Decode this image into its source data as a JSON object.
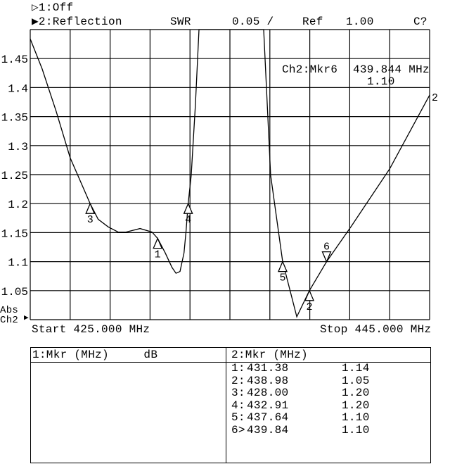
{
  "header": {
    "channel1": "▷1:Off",
    "channel2": "▶2:Reflection",
    "format": "SWR",
    "scale": "0.05 /",
    "ref_label": "Ref",
    "ref_value": "1.00",
    "status": "C?"
  },
  "marker_readout": {
    "label": "Ch2:Mkr6",
    "freq": "439.844 MHz",
    "value": "1.10"
  },
  "axis": {
    "abs": "Abs",
    "channel": "Ch2",
    "start": "Start 425.000 MHz",
    "stop": "Stop 445.000 MHz"
  },
  "table": {
    "left_header": "1:Mkr (MHz)     dB",
    "right_header": "2:Mkr (MHz)",
    "rows": [
      {
        "id": "1:",
        "freq": "431.38",
        "value": "1.14"
      },
      {
        "id": "2:",
        "freq": "438.98",
        "value": "1.05"
      },
      {
        "id": "3:",
        "freq": "428.00",
        "value": "1.20"
      },
      {
        "id": "4:",
        "freq": "432.91",
        "value": "1.20"
      },
      {
        "id": "5:",
        "freq": "437.64",
        "value": "1.10"
      },
      {
        "id": "6>",
        "freq": "439.84",
        "value": "1.10"
      }
    ]
  },
  "chart_data": {
    "type": "line",
    "xlabel": "",
    "ylabel": "",
    "xlim": [
      425,
      445
    ],
    "ylim": [
      1.0,
      1.5
    ],
    "grid": true,
    "yticks": [
      "1.45",
      "1.4",
      "1.35",
      "1.3",
      "1.25",
      "1.2",
      "1.15",
      "1.1",
      "1.05"
    ],
    "ytick_values": [
      1.45,
      1.4,
      1.35,
      1.3,
      1.25,
      1.2,
      1.15,
      1.1,
      1.05
    ],
    "trace_label": "2",
    "series": [
      {
        "x": [
          425.0,
          425.6,
          426.3,
          427.0,
          428.0,
          428.4,
          428.9,
          429.4,
          429.8,
          430.5,
          431.1,
          431.38,
          431.76,
          432.1,
          432.3,
          432.5,
          432.7,
          432.8,
          432.91,
          433.06,
          433.27,
          433.45,
          436.69,
          437.04,
          437.64,
          438.35,
          438.98,
          439.84,
          441.1,
          443.0,
          445.0
        ],
        "y": [
          1.484,
          1.432,
          1.359,
          1.279,
          1.2,
          1.173,
          1.16,
          1.151,
          1.151,
          1.157,
          1.151,
          1.14,
          1.115,
          1.09,
          1.08,
          1.083,
          1.115,
          1.151,
          1.2,
          1.248,
          1.37,
          1.5,
          1.5,
          1.249,
          1.1,
          1.005,
          1.05,
          1.1,
          1.162,
          1.26,
          1.387
        ]
      }
    ],
    "markers": [
      {
        "label": "1",
        "x": 431.38,
        "y": 1.14,
        "active": false
      },
      {
        "label": "2",
        "x": 438.98,
        "y": 1.05,
        "active": false
      },
      {
        "label": "3",
        "x": 428.0,
        "y": 1.2,
        "active": false
      },
      {
        "label": "4",
        "x": 432.91,
        "y": 1.2,
        "active": false
      },
      {
        "label": "5",
        "x": 437.64,
        "y": 1.1,
        "active": false
      },
      {
        "label": "6",
        "x": 439.84,
        "y": 1.1,
        "active": true
      }
    ]
  }
}
